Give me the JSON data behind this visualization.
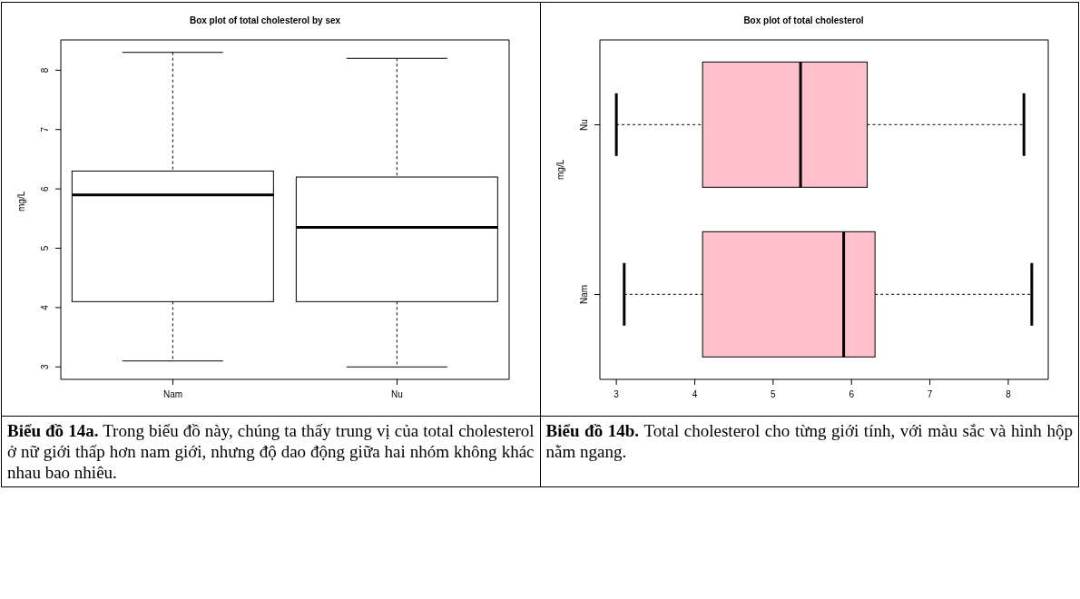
{
  "chart_data": [
    {
      "type": "box",
      "title": "Box plot of total cholesterol by sex",
      "ylabel": "mg/L",
      "categories": [
        "Nam",
        "Nu"
      ],
      "color": "#ffffff",
      "ylim": [
        2.79,
        8.51
      ],
      "yticks": [
        3,
        4,
        5,
        6,
        7,
        8
      ],
      "boxes": [
        {
          "low": 3.1,
          "q1": 4.1,
          "median": 5.9,
          "q3": 6.3,
          "high": 8.3
        },
        {
          "low": 3.0,
          "q1": 4.1,
          "median": 5.35,
          "q3": 6.2,
          "high": 8.2
        }
      ],
      "annotations": [
        "Biểu đồ 14a.",
        "Trong biểu đồ này, chúng ta thấy trung vị của total cholesterol ở nữ giới thấp hơn nam giới, nhưng độ dao động giữa hai nhóm không khác nhau bao nhiêu."
      ]
    },
    {
      "type": "box",
      "orientation": "horizontal",
      "title": "Box plot of total cholesterol",
      "ylabel": "mg/L",
      "categories": [
        "Nu",
        "Nam"
      ],
      "color": "#ffc0cb",
      "xlim": [
        2.79,
        8.51
      ],
      "xticks": [
        3,
        4,
        5,
        6,
        7,
        8
      ],
      "boxes": [
        {
          "low": 3.0,
          "q1": 4.1,
          "median": 5.35,
          "q3": 6.2,
          "high": 8.2
        },
        {
          "low": 3.1,
          "q1": 4.1,
          "median": 5.9,
          "q3": 6.3,
          "high": 8.3
        }
      ],
      "annotations": [
        "Biểu đồ 14b.",
        "Total cholesterol cho từng giới tính, với màu sắc và hình hộp nằm ngang."
      ]
    }
  ]
}
